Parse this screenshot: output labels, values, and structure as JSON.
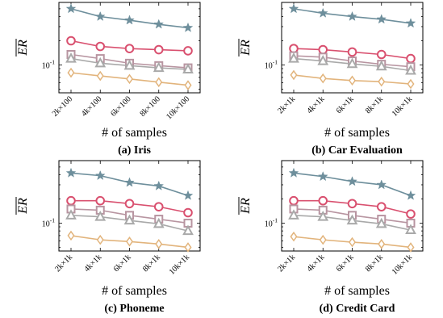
{
  "colors": {
    "star": "#6e8f9c",
    "circle": "#d9506f",
    "square": "#b895a1",
    "triangle": "#a9a9a9",
    "diamond": "#e2b47c"
  },
  "chart_data": [
    {
      "type": "line",
      "caption": "(a) Iris",
      "xlabel": "# of samples",
      "ylabel": "ER",
      "yscale": "log",
      "categories": [
        "2k×100",
        "4k×100",
        "6k×100",
        "8k×100",
        "10k×100"
      ],
      "ytick_labels": [
        "10^-1"
      ],
      "series": [
        {
          "marker": "star",
          "values": [
            0.5,
            0.4,
            0.36,
            0.32,
            0.29
          ]
        },
        {
          "marker": "circle",
          "values": [
            0.2,
            0.17,
            0.16,
            0.155,
            0.15
          ]
        },
        {
          "marker": "square",
          "values": [
            0.135,
            0.12,
            0.105,
            0.098,
            0.092
          ]
        },
        {
          "marker": "triangle",
          "values": [
            0.12,
            0.105,
            0.098,
            0.092,
            0.088
          ]
        },
        {
          "marker": "diamond",
          "values": [
            0.08,
            0.073,
            0.067,
            0.061,
            0.056
          ]
        }
      ]
    },
    {
      "type": "line",
      "caption": "(b) Car Evaluation",
      "xlabel": "# of samples",
      "ylabel": "ER",
      "yscale": "log",
      "categories": [
        "2k×1k",
        "4k×1k",
        "6k×1k",
        "8k×1k",
        "10k×1k"
      ],
      "ytick_labels": [
        "10^-1"
      ],
      "series": [
        {
          "marker": "star",
          "values": [
            0.5,
            0.44,
            0.4,
            0.37,
            0.33
          ]
        },
        {
          "marker": "circle",
          "values": [
            0.16,
            0.155,
            0.145,
            0.135,
            0.12
          ]
        },
        {
          "marker": "square",
          "values": [
            0.13,
            0.125,
            0.112,
            0.102,
            0.095
          ]
        },
        {
          "marker": "triangle",
          "values": [
            0.12,
            0.112,
            0.103,
            0.096,
            0.085
          ]
        },
        {
          "marker": "diamond",
          "values": [
            0.075,
            0.068,
            0.064,
            0.062,
            0.058
          ]
        }
      ]
    },
    {
      "type": "line",
      "caption": "(c) Phoneme",
      "xlabel": "# of samples",
      "ylabel": "ER",
      "yscale": "log",
      "categories": [
        "2k×1k",
        "4k×1k",
        "6k×1k",
        "8k×1k",
        "10k×1k"
      ],
      "ytick_labels": [
        "10^-1"
      ],
      "series": [
        {
          "marker": "star",
          "values": [
            0.42,
            0.39,
            0.32,
            0.29,
            0.22
          ]
        },
        {
          "marker": "circle",
          "values": [
            0.19,
            0.19,
            0.175,
            0.16,
            0.135
          ]
        },
        {
          "marker": "square",
          "values": [
            0.15,
            0.145,
            0.125,
            0.112,
            0.1
          ]
        },
        {
          "marker": "triangle",
          "values": [
            0.125,
            0.12,
            0.108,
            0.098,
            0.08
          ]
        },
        {
          "marker": "diamond",
          "values": [
            0.07,
            0.062,
            0.059,
            0.055,
            0.05
          ]
        }
      ]
    },
    {
      "type": "line",
      "caption": "(d) Credit Card",
      "xlabel": "# of samples",
      "ylabel": "ER",
      "yscale": "log",
      "categories": [
        "2k×1k",
        "4k×1k",
        "6k×1k",
        "8k×1k",
        "10k×1k"
      ],
      "ytick_labels": [
        "10^-1"
      ],
      "series": [
        {
          "marker": "star",
          "values": [
            0.42,
            0.38,
            0.33,
            0.3,
            0.22
          ]
        },
        {
          "marker": "circle",
          "values": [
            0.19,
            0.19,
            0.175,
            0.16,
            0.13
          ]
        },
        {
          "marker": "square",
          "values": [
            0.15,
            0.145,
            0.125,
            0.112,
            0.1
          ]
        },
        {
          "marker": "triangle",
          "values": [
            0.125,
            0.12,
            0.108,
            0.098,
            0.082
          ]
        },
        {
          "marker": "diamond",
          "values": [
            0.068,
            0.062,
            0.058,
            0.055,
            0.05
          ]
        }
      ]
    }
  ]
}
